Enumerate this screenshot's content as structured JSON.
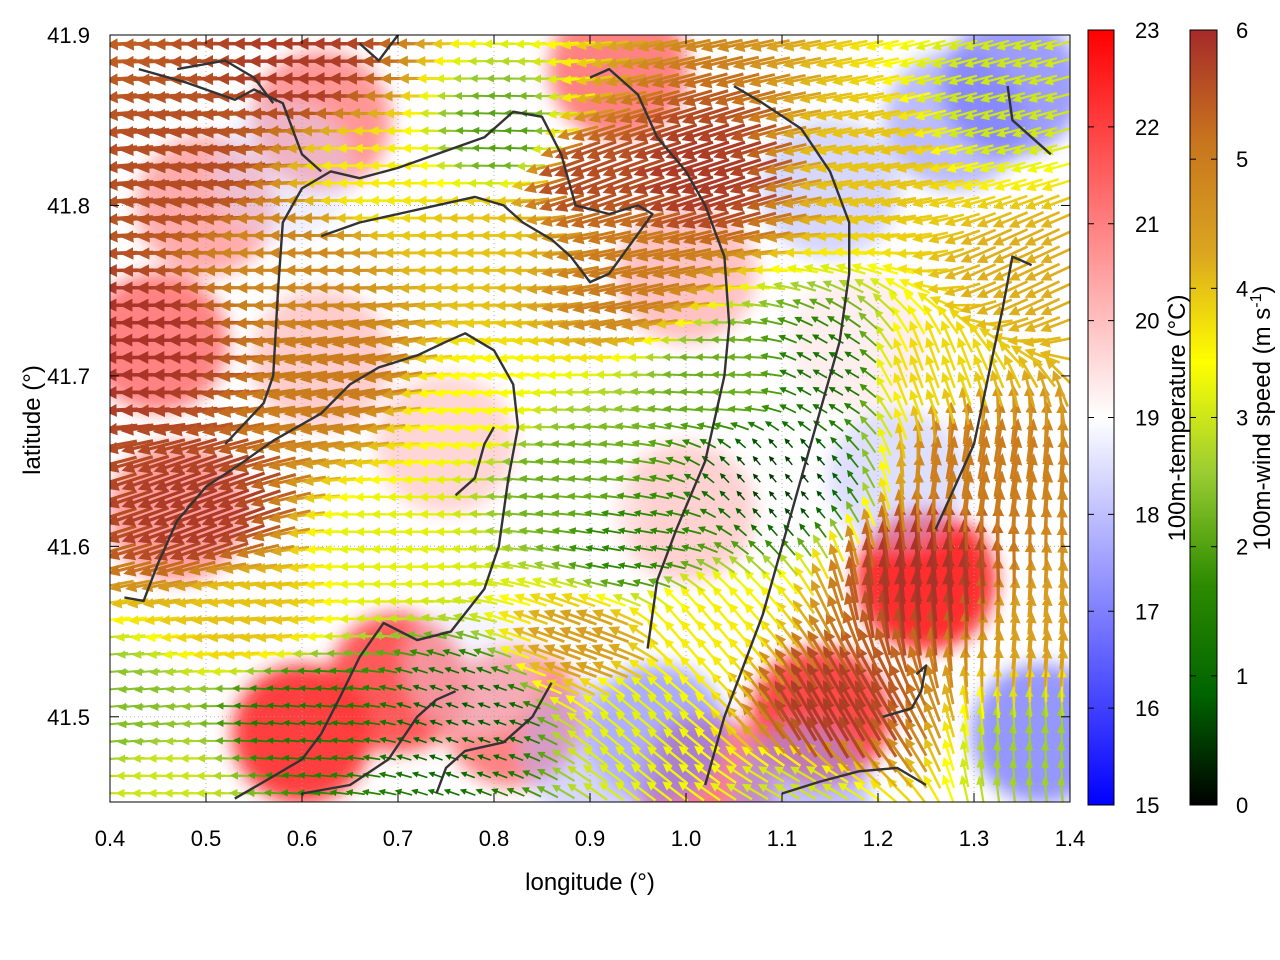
{
  "chart_data": {
    "type": "heatmap",
    "xlabel": "longitude (°)",
    "ylabel": "latitude (°)",
    "xlim": [
      0.4,
      1.4
    ],
    "ylim": [
      41.45,
      41.9
    ],
    "x_ticks": [
      0.4,
      0.5,
      0.6,
      0.7,
      0.8,
      0.9,
      1.0,
      1.1,
      1.2,
      1.3,
      1.4
    ],
    "y_ticks": [
      41.5,
      41.6,
      41.7,
      41.8,
      41.9
    ],
    "x_tick_labels": [
      "0.4",
      "0.5",
      "0.6",
      "0.7",
      "0.8",
      "0.9",
      "1.0",
      "1.1",
      "1.2",
      "1.3",
      "1.4"
    ],
    "y_tick_labels": [
      "41.5",
      "41.6",
      "41.7",
      "41.8",
      "41.9"
    ],
    "grid": true,
    "temperature_colorbar": {
      "label": "100m-temperature (°C)",
      "range": [
        15,
        23
      ],
      "ticks": [
        "15",
        "16",
        "17",
        "18",
        "19",
        "20",
        "21",
        "22",
        "23"
      ],
      "colors": [
        "#0000ff",
        "#ffffff",
        "#ff0000"
      ]
    },
    "wind_colorbar": {
      "label_main": "100m-wind speed (m s",
      "label_sup": "-1",
      "label_end": ")",
      "range": [
        0,
        6
      ],
      "ticks": [
        "0",
        "1",
        "2",
        "3",
        "4",
        "5",
        "6"
      ],
      "colors": [
        "#000000",
        "#006400",
        "#2e8b00",
        "#9acd32",
        "#ffff00",
        "#daa520",
        "#c8741e",
        "#a52a2a"
      ]
    },
    "temperature_field": [
      {
        "lon": 0.45,
        "lat": 41.72,
        "value": 21.6
      },
      {
        "lon": 0.47,
        "lat": 41.62,
        "value": 21.2
      },
      {
        "lon": 0.5,
        "lat": 41.8,
        "value": 21.0
      },
      {
        "lon": 0.6,
        "lat": 41.49,
        "value": 22.4
      },
      {
        "lon": 0.7,
        "lat": 41.52,
        "value": 22.1
      },
      {
        "lon": 0.82,
        "lat": 41.5,
        "value": 21.6
      },
      {
        "lon": 0.62,
        "lat": 41.85,
        "value": 21.3
      },
      {
        "lon": 0.93,
        "lat": 41.88,
        "value": 21.6
      },
      {
        "lon": 1.25,
        "lat": 41.58,
        "value": 22.6
      },
      {
        "lon": 1.14,
        "lat": 41.5,
        "value": 22.3
      },
      {
        "lon": 1.02,
        "lat": 41.46,
        "value": 21.7
      },
      {
        "lon": 1.0,
        "lat": 41.62,
        "value": 20.3
      },
      {
        "lon": 0.75,
        "lat": 41.66,
        "value": 20.2
      },
      {
        "lon": 0.62,
        "lat": 41.71,
        "value": 20.4
      },
      {
        "lon": 1.0,
        "lat": 41.76,
        "value": 20.6
      },
      {
        "lon": 1.18,
        "lat": 41.72,
        "value": 19.6
      },
      {
        "lon": 0.58,
        "lat": 41.82,
        "value": 18.4
      },
      {
        "lon": 1.28,
        "lat": 41.85,
        "value": 17.3
      },
      {
        "lon": 1.34,
        "lat": 41.87,
        "value": 16.8
      },
      {
        "lon": 1.15,
        "lat": 41.81,
        "value": 17.8
      },
      {
        "lon": 1.22,
        "lat": 41.64,
        "value": 18.0
      },
      {
        "lon": 0.97,
        "lat": 41.49,
        "value": 17.0
      },
      {
        "lon": 0.9,
        "lat": 41.48,
        "value": 17.8
      },
      {
        "lon": 1.37,
        "lat": 41.49,
        "value": 16.7
      },
      {
        "lon": 1.12,
        "lat": 41.455,
        "value": 17.4
      },
      {
        "lon": 0.78,
        "lat": 41.53,
        "value": 18.6
      },
      {
        "lon": 0.88,
        "lat": 41.62,
        "value": 19.0
      }
    ],
    "wind_field": [
      {
        "lon": 0.45,
        "lat": 41.72,
        "speed": 5.9,
        "dir": 180
      },
      {
        "lon": 0.5,
        "lat": 41.62,
        "speed": 5.8,
        "dir": 200
      },
      {
        "lon": 0.5,
        "lat": 41.82,
        "speed": 5.6,
        "dir": 185
      },
      {
        "lon": 0.62,
        "lat": 41.88,
        "speed": 5.8,
        "dir": 180
      },
      {
        "lon": 0.6,
        "lat": 41.77,
        "speed": 4.8,
        "dir": 180
      },
      {
        "lon": 0.65,
        "lat": 41.7,
        "speed": 5.0,
        "dir": 190
      },
      {
        "lon": 0.68,
        "lat": 41.82,
        "speed": 3.6,
        "dir": 180
      },
      {
        "lon": 0.8,
        "lat": 41.78,
        "speed": 4.0,
        "dir": 180
      },
      {
        "lon": 0.82,
        "lat": 41.84,
        "speed": 2.0,
        "dir": 178
      },
      {
        "lon": 0.9,
        "lat": 41.82,
        "speed": 5.6,
        "dir": 200
      },
      {
        "lon": 0.95,
        "lat": 41.76,
        "speed": 5.0,
        "dir": 192
      },
      {
        "lon": 1.02,
        "lat": 41.82,
        "speed": 5.8,
        "dir": 198
      },
      {
        "lon": 1.2,
        "lat": 41.83,
        "speed": 4.0,
        "dir": 190
      },
      {
        "lon": 1.32,
        "lat": 41.86,
        "speed": 3.0,
        "dir": 195
      },
      {
        "lon": 1.36,
        "lat": 41.76,
        "speed": 4.2,
        "dir": 205
      },
      {
        "lon": 0.78,
        "lat": 41.68,
        "speed": 3.4,
        "dir": 185
      },
      {
        "lon": 0.7,
        "lat": 41.6,
        "speed": 3.2,
        "dir": 180
      },
      {
        "lon": 0.55,
        "lat": 41.56,
        "speed": 4.0,
        "dir": 185
      },
      {
        "lon": 0.6,
        "lat": 41.5,
        "speed": 1.3,
        "dir": 175
      },
      {
        "lon": 0.78,
        "lat": 41.5,
        "speed": 0.8,
        "dir": 160
      },
      {
        "lon": 0.88,
        "lat": 41.64,
        "speed": 2.2,
        "dir": 175
      },
      {
        "lon": 0.95,
        "lat": 41.6,
        "speed": 1.6,
        "dir": 170
      },
      {
        "lon": 1.1,
        "lat": 41.64,
        "speed": 0.5,
        "dir": 130
      },
      {
        "lon": 1.15,
        "lat": 41.7,
        "speed": 1.2,
        "dir": 150
      },
      {
        "lon": 1.05,
        "lat": 41.7,
        "speed": 2.2,
        "dir": 178
      },
      {
        "lon": 1.25,
        "lat": 41.58,
        "speed": 5.9,
        "dir": 95
      },
      {
        "lon": 1.15,
        "lat": 41.5,
        "speed": 5.8,
        "dir": 120
      },
      {
        "lon": 1.3,
        "lat": 41.65,
        "speed": 5.0,
        "dir": 80
      },
      {
        "lon": 1.37,
        "lat": 41.55,
        "speed": 4.4,
        "dir": 85
      },
      {
        "lon": 1.25,
        "lat": 41.7,
        "speed": 3.8,
        "dir": 110
      },
      {
        "lon": 0.95,
        "lat": 41.5,
        "speed": 3.2,
        "dir": 140
      },
      {
        "lon": 1.02,
        "lat": 41.55,
        "speed": 3.6,
        "dir": 130
      },
      {
        "lon": 0.9,
        "lat": 41.54,
        "speed": 4.4,
        "dir": 160
      },
      {
        "lon": 1.38,
        "lat": 41.48,
        "speed": 2.6,
        "dir": 95
      },
      {
        "lon": 1.12,
        "lat": 41.455,
        "speed": 3.0,
        "dir": 150
      },
      {
        "lon": 0.42,
        "lat": 41.5,
        "speed": 2.4,
        "dir": 185
      },
      {
        "lon": 0.46,
        "lat": 41.46,
        "speed": 3.0,
        "dir": 180
      }
    ],
    "coastline": [
      [
        [
          0.415,
          41.57
        ],
        [
          0.435,
          41.568
        ],
        [
          0.45,
          41.59
        ],
        [
          0.47,
          41.615
        ],
        [
          0.5,
          41.635
        ],
        [
          0.535,
          41.648
        ],
        [
          0.57,
          41.662
        ],
        [
          0.62,
          41.678
        ],
        [
          0.65,
          41.695
        ],
        [
          0.68,
          41.705
        ],
        [
          0.72,
          41.712
        ],
        [
          0.75,
          41.72
        ],
        [
          0.77,
          41.725
        ],
        [
          0.8,
          41.715
        ],
        [
          0.82,
          41.695
        ],
        [
          0.825,
          41.67
        ],
        [
          0.815,
          41.64
        ],
        [
          0.805,
          41.6
        ],
        [
          0.79,
          41.575
        ],
        [
          0.755,
          41.55
        ],
        [
          0.72,
          41.545
        ],
        [
          0.685,
          41.555
        ],
        [
          0.66,
          41.535
        ],
        [
          0.64,
          41.512
        ],
        [
          0.62,
          41.49
        ],
        [
          0.6,
          41.475
        ],
        [
          0.57,
          41.465
        ],
        [
          0.53,
          41.452
        ]
      ],
      [
        [
          0.52,
          41.66
        ],
        [
          0.54,
          41.672
        ],
        [
          0.56,
          41.684
        ],
        [
          0.57,
          41.7
        ],
        [
          0.575,
          41.75
        ],
        [
          0.58,
          41.79
        ],
        [
          0.6,
          41.81
        ],
        [
          0.63,
          41.82
        ],
        [
          0.66,
          41.816
        ],
        [
          0.7,
          41.822
        ],
        [
          0.74,
          41.83
        ],
        [
          0.79,
          41.84
        ],
        [
          0.82,
          41.855
        ],
        [
          0.85,
          41.852
        ],
        [
          0.87,
          41.83
        ],
        [
          0.885,
          41.8
        ],
        [
          0.92,
          41.795
        ],
        [
          0.95,
          41.8
        ],
        [
          0.965,
          41.795
        ],
        [
          0.92,
          41.76
        ],
        [
          0.9,
          41.755
        ],
        [
          0.88,
          41.77
        ],
        [
          0.86,
          41.78
        ],
        [
          0.83,
          41.79
        ],
        [
          0.81,
          41.8
        ],
        [
          0.78,
          41.805
        ],
        [
          0.74,
          41.8
        ],
        [
          0.7,
          41.795
        ],
        [
          0.66,
          41.79
        ],
        [
          0.62,
          41.782
        ]
      ],
      [
        [
          0.43,
          41.88
        ],
        [
          0.48,
          41.872
        ],
        [
          0.53,
          41.862
        ],
        [
          0.55,
          41.868
        ],
        [
          0.58,
          41.86
        ],
        [
          0.6,
          41.83
        ],
        [
          0.62,
          41.82
        ]
      ],
      [
        [
          0.66,
          41.895
        ],
        [
          0.68,
          41.885
        ],
        [
          0.7,
          41.9
        ]
      ],
      [
        [
          0.76,
          41.63
        ],
        [
          0.78,
          41.64
        ],
        [
          0.79,
          41.66
        ],
        [
          0.8,
          41.67
        ]
      ],
      [
        [
          0.96,
          41.54
        ],
        [
          0.97,
          41.58
        ],
        [
          0.99,
          41.61
        ],
        [
          1.02,
          41.65
        ],
        [
          1.04,
          41.7
        ],
        [
          1.045,
          41.73
        ],
        [
          1.04,
          41.77
        ],
        [
          1.02,
          41.8
        ],
        [
          1.0,
          41.82
        ],
        [
          0.97,
          41.84
        ],
        [
          0.95,
          41.865
        ],
        [
          0.92,
          41.88
        ],
        [
          0.9,
          41.875
        ]
      ],
      [
        [
          1.02,
          41.46
        ],
        [
          1.04,
          41.5
        ],
        [
          1.06,
          41.53
        ],
        [
          1.08,
          41.56
        ],
        [
          1.1,
          41.6
        ],
        [
          1.12,
          41.64
        ],
        [
          1.14,
          41.68
        ],
        [
          1.16,
          41.72
        ],
        [
          1.17,
          41.76
        ],
        [
          1.17,
          41.79
        ],
        [
          1.15,
          41.82
        ],
        [
          1.12,
          41.845
        ],
        [
          1.08,
          41.86
        ],
        [
          1.05,
          41.87
        ]
      ],
      [
        [
          1.1,
          41.455
        ],
        [
          1.14,
          41.462
        ],
        [
          1.18,
          41.468
        ],
        [
          1.22,
          41.47
        ],
        [
          1.25,
          41.46
        ]
      ],
      [
        [
          1.205,
          41.5
        ],
        [
          1.235,
          41.505
        ],
        [
          1.245,
          41.515
        ],
        [
          1.25,
          41.53
        ],
        [
          1.24,
          41.525
        ]
      ],
      [
        [
          1.26,
          41.61
        ],
        [
          1.28,
          41.635
        ],
        [
          1.3,
          41.66
        ],
        [
          1.315,
          41.7
        ],
        [
          1.33,
          41.74
        ],
        [
          1.34,
          41.77
        ],
        [
          1.36,
          41.765
        ]
      ],
      [
        [
          1.335,
          41.87
        ],
        [
          1.34,
          41.85
        ],
        [
          1.36,
          41.84
        ],
        [
          1.38,
          41.83
        ]
      ],
      [
        [
          0.47,
          41.88
        ],
        [
          0.52,
          41.885
        ],
        [
          0.55,
          41.875
        ],
        [
          0.57,
          41.86
        ]
      ],
      [
        [
          0.74,
          41.455
        ],
        [
          0.75,
          41.47
        ],
        [
          0.77,
          41.48
        ],
        [
          0.81,
          41.485
        ],
        [
          0.84,
          41.5
        ],
        [
          0.86,
          41.52
        ]
      ],
      [
        [
          0.6,
          41.455
        ],
        [
          0.65,
          41.46
        ],
        [
          0.69,
          41.475
        ],
        [
          0.72,
          41.5
        ],
        [
          0.74,
          41.51
        ],
        [
          0.76,
          41.515
        ]
      ]
    ]
  }
}
